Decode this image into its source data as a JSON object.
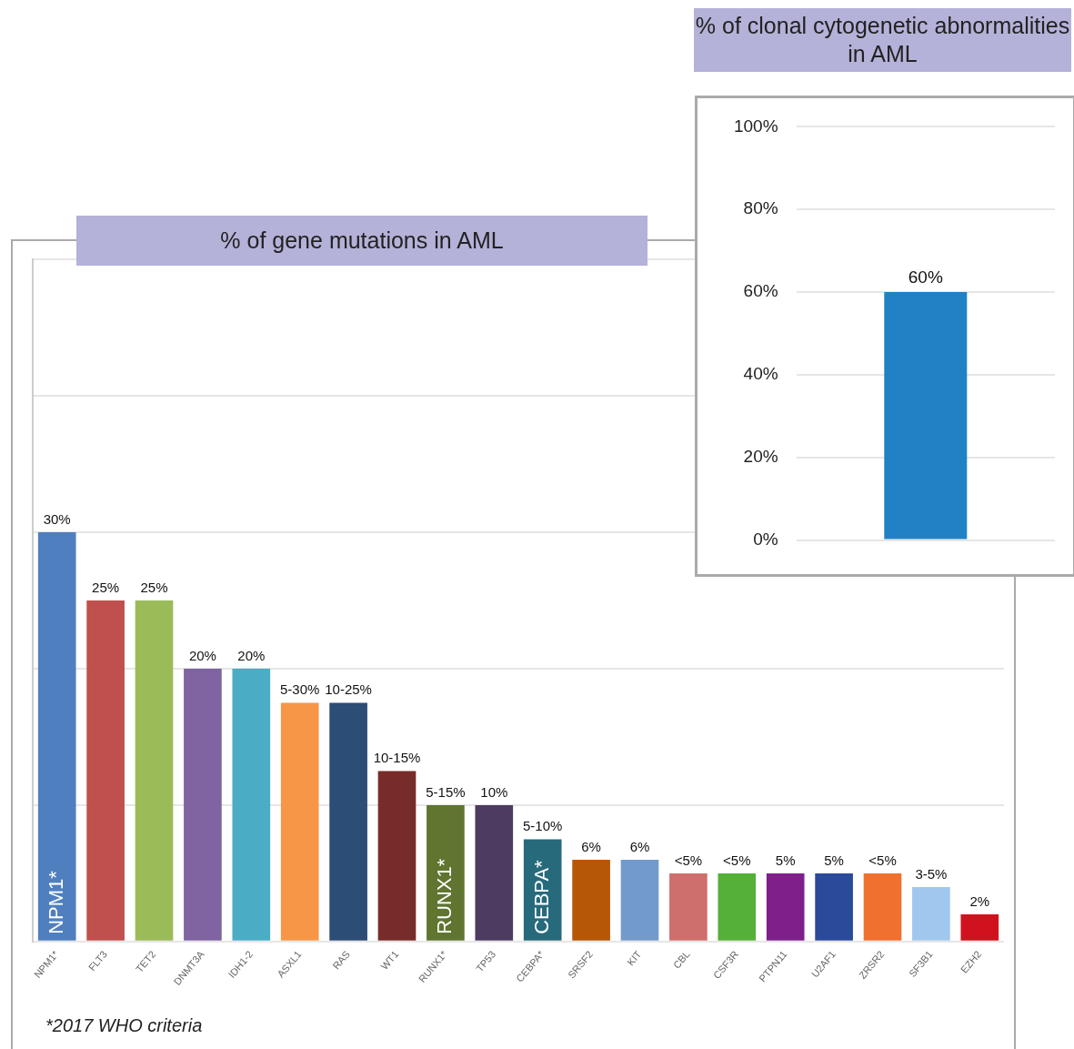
{
  "chart_data": [
    {
      "type": "bar",
      "title": "% of gene mutations in AML",
      "categories": [
        "NPM1*",
        "FLT3",
        "TET2",
        "DNMT3A",
        "IDH1-2",
        "ASXL1",
        "RAS",
        "WT1",
        "RUNX1*",
        "TP53",
        "CEBPA*",
        "SRSF2",
        "KIT",
        "CBL",
        "CSF3R",
        "PTPN11",
        "U2AF1",
        "ZRSR2",
        "SF3B1",
        "EZH2"
      ],
      "values": [
        30,
        25,
        25,
        20,
        20,
        17.5,
        17.5,
        12.5,
        10,
        10,
        7.5,
        6,
        6,
        5,
        5,
        5,
        5,
        5,
        4,
        2
      ],
      "colors": [
        "#4f7fbf",
        "#c0504d",
        "#9bbb59",
        "#8064a2",
        "#4bacc6",
        "#f79646",
        "#2c4d75",
        "#772c2a",
        "#5f7530",
        "#4d3b62",
        "#276a7c",
        "#b65708",
        "#729aca",
        "#cf6f6d",
        "#55b03a",
        "#7f1f8a",
        "#2a4a9a",
        "#f07030",
        "#a0c8ee",
        "#d0121e"
      ],
      "value_labels": [
        "30%",
        "25%",
        "25%",
        "20%",
        "20%",
        null,
        null,
        null,
        null,
        "10%",
        null,
        "6%",
        "6%",
        "<5%",
        "<5%",
        "5%",
        "5%",
        "<5%",
        null,
        "2%"
      ],
      "ylim": [
        0,
        50
      ],
      "yticks": [
        {
          "value": 0,
          "label": null
        },
        {
          "value": 10,
          "label": null
        },
        {
          "value": 20,
          "label": null
        },
        {
          "value": 30,
          "label": null
        },
        {
          "value": 40,
          "label": null
        },
        {
          "value": 50,
          "label": null
        }
      ],
      "grid": "y",
      "tick_labels": "x",
      "annotations": [
        {
          "text": "5-30%",
          "x": "ASXL1",
          "y": 17.5
        },
        {
          "text": "10-25%",
          "x": "RAS",
          "y": 17.5
        },
        {
          "text": "10-15%",
          "x": "WT1",
          "y": 12.5
        },
        {
          "text": "5-15%",
          "x": "RUNX1*",
          "y": 10
        },
        {
          "text": "5-10%",
          "x": "CEBPA*",
          "y": 7.5
        },
        {
          "text": "3-5%",
          "x": "SF3B1",
          "y": 4
        },
        {
          "text": "NPM1*",
          "x": "NPM1*",
          "y": 0
        },
        {
          "text": "RUNX1*",
          "x": "RUNX1*",
          "y": 0
        },
        {
          "text": "CEBPA*",
          "x": "CEBPA*",
          "y": 0
        },
        "*2017 WHO criteria"
      ]
    },
    {
      "type": "bar",
      "title": "% of clonal cytogenetic abnormalities in AML",
      "categories": [
        null
      ],
      "values": [
        60
      ],
      "color": "#2281c4",
      "value_labels": [
        "60%"
      ],
      "ylim": [
        0,
        100
      ],
      "yticks": [
        {
          "value": 0,
          "label": "0%"
        },
        {
          "value": 20,
          "label": "20%"
        },
        {
          "value": 40,
          "label": "40%"
        },
        {
          "value": 60,
          "label": "60%"
        },
        {
          "value": 80,
          "label": "80%"
        },
        {
          "value": 100,
          "label": "100%"
        }
      ],
      "grid": "y",
      "tick_labels": "y"
    }
  ]
}
